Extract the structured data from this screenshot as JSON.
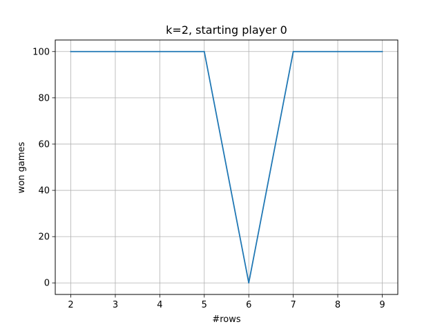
{
  "chart_data": {
    "type": "line",
    "title": "k=2, starting player 0",
    "xlabel": "#rows",
    "ylabel": "won games",
    "x": [
      2,
      3,
      4,
      5,
      6,
      7,
      8,
      9
    ],
    "series": [
      {
        "values": [
          100,
          100,
          100,
          100,
          0,
          100,
          100,
          100
        ],
        "color": "#1f77b4"
      }
    ],
    "xticks": [
      "2",
      "3",
      "4",
      "5",
      "6",
      "7",
      "8",
      "9"
    ],
    "yticks": [
      "0",
      "20",
      "40",
      "60",
      "80",
      "100"
    ],
    "xlim": [
      1.65,
      9.35
    ],
    "ylim": [
      -5,
      105
    ],
    "grid": true
  }
}
